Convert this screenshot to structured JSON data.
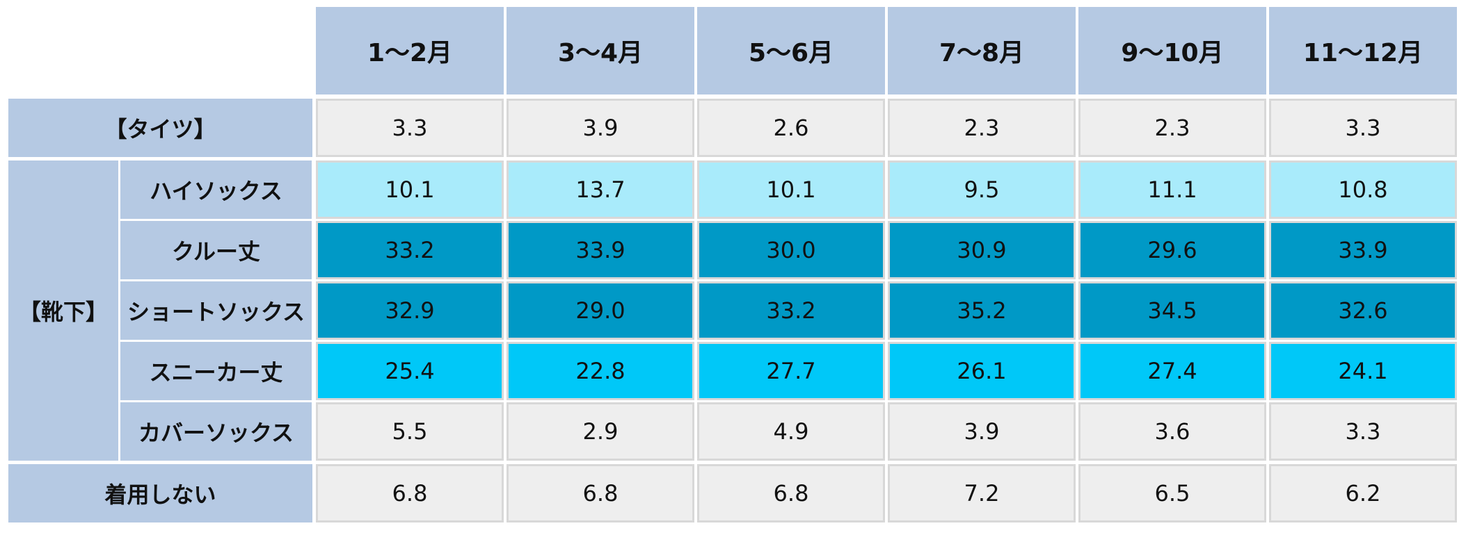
{
  "chart_data": {
    "type": "table",
    "columns": [
      "1～2月",
      "3～4月",
      "5～6月",
      "7～8月",
      "9～10月",
      "11～12月"
    ],
    "groups": [
      {
        "label": "【タイツ】",
        "rows": [
          {
            "label": "",
            "values": [
              "3.3",
              "3.9",
              "2.6",
              "2.3",
              "2.3",
              "3.3"
            ]
          }
        ]
      },
      {
        "label": "【靴下】",
        "rows": [
          {
            "label": "ハイソックス",
            "values": [
              "10.1",
              "13.7",
              "10.1",
              "9.5",
              "11.1",
              "10.8"
            ]
          },
          {
            "label": "クルー丈",
            "values": [
              "33.2",
              "33.9",
              "30.0",
              "30.9",
              "29.6",
              "33.9"
            ]
          },
          {
            "label": "ショートソックス",
            "values": [
              "32.9",
              "29.0",
              "33.2",
              "35.2",
              "34.5",
              "32.6"
            ]
          },
          {
            "label": "スニーカー丈",
            "values": [
              "25.4",
              "22.8",
              "27.7",
              "26.1",
              "27.4",
              "24.1"
            ]
          },
          {
            "label": "カバーソックス",
            "values": [
              "5.5",
              "2.9",
              "4.9",
              "3.9",
              "3.6",
              "3.3"
            ]
          }
        ]
      },
      {
        "label": "着用しない",
        "rows": [
          {
            "label": "",
            "values": [
              "6.8",
              "6.8",
              "6.8",
              "7.2",
              "6.5",
              "6.2"
            ]
          }
        ]
      }
    ],
    "rank_colors": {
      "1": "#0099c6",
      "2": "#0099c6",
      "3": "#00c8f8",
      "4": "#a9ebfb",
      "default": "#eeeeee"
    },
    "header_color": "#b5c9e3"
  }
}
